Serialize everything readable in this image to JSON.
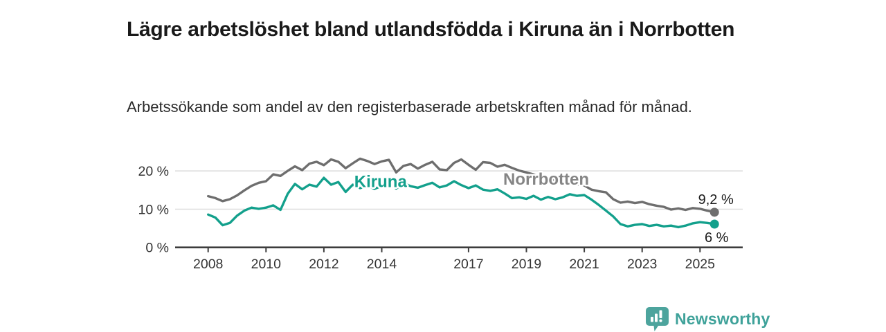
{
  "header": {
    "title": "Lägre arbetslöshet bland utlandsfödda i Kiruna än i Norrbotten",
    "subtitle": "Arbetssökande som andel av den registerbaserade arbetskraften månad för månad."
  },
  "branding": {
    "logo_text": "Newsworthy",
    "logo_icon": "newsworthy-bar-chart-bubble-icon",
    "logo_color": "#4da49d",
    "text_color": "#3fa29a"
  },
  "chart_data": {
    "type": "line",
    "unit": "%",
    "grid": "horizontal",
    "grid_color": "#dcdcdc",
    "axis_color": "#3d3d3d",
    "tick_label_color": "#333333",
    "ylim": [
      0,
      24
    ],
    "xlim": [
      2007.8,
      2026.3
    ],
    "yticks": [
      {
        "value": 0,
        "label": "0 %"
      },
      {
        "value": 10,
        "label": "10 %"
      },
      {
        "value": 20,
        "label": "20 %"
      }
    ],
    "xticks": [
      {
        "value": 2008,
        "label": "2008"
      },
      {
        "value": 2010,
        "label": "2010"
      },
      {
        "value": 2012,
        "label": "2012"
      },
      {
        "value": 2014,
        "label": "2014"
      },
      {
        "value": 2017,
        "label": "2017"
      },
      {
        "value": 2019,
        "label": "2019"
      },
      {
        "value": 2021,
        "label": "2021"
      },
      {
        "value": 2023,
        "label": "2023"
      },
      {
        "value": 2025,
        "label": "2025"
      }
    ],
    "x": [
      2008,
      2008.25,
      2008.5,
      2008.75,
      2009,
      2009.25,
      2009.5,
      2009.75,
      2010,
      2010.25,
      2010.5,
      2010.75,
      2011,
      2011.25,
      2011.5,
      2011.75,
      2012,
      2012.25,
      2012.5,
      2012.75,
      2013,
      2013.25,
      2013.5,
      2013.75,
      2014,
      2014.25,
      2014.5,
      2014.75,
      2015,
      2015.25,
      2015.5,
      2015.75,
      2016,
      2016.25,
      2016.5,
      2016.75,
      2017,
      2017.25,
      2017.5,
      2017.75,
      2018,
      2018.25,
      2018.5,
      2018.75,
      2019,
      2019.25,
      2019.5,
      2019.75,
      2020,
      2020.25,
      2020.5,
      2020.75,
      2021,
      2021.25,
      2021.5,
      2021.75,
      2022,
      2022.25,
      2022.5,
      2022.75,
      2023,
      2023.25,
      2023.5,
      2023.75,
      2024,
      2024.25,
      2024.5,
      2024.75,
      2025,
      2025.25,
      2025.5
    ],
    "series": [
      {
        "name": "Norrbotten",
        "color": "#6e6e6e",
        "label_color": "#858585",
        "end_label": "9,2 %",
        "end_label_offset": {
          "dx": 2,
          "dy": -12
        },
        "label_pos": {
          "x": 2018.2,
          "y": 16.4
        },
        "values": [
          13.4,
          12.9,
          12.1,
          12.6,
          13.6,
          14.9,
          16.1,
          16.9,
          17.3,
          19.1,
          18.7,
          20.0,
          21.2,
          20.2,
          21.9,
          22.4,
          21.5,
          23.0,
          22.4,
          20.7,
          22.0,
          23.2,
          22.6,
          21.8,
          22.5,
          22.9,
          19.6,
          21.3,
          21.8,
          20.6,
          21.6,
          22.4,
          20.4,
          20.2,
          22.1,
          23.0,
          21.6,
          20.3,
          22.3,
          22.1,
          21.1,
          21.6,
          20.8,
          20.1,
          19.6,
          19.1,
          18.4,
          17.9,
          17.6,
          17.1,
          16.9,
          16.5,
          16.2,
          15.1,
          14.7,
          14.4,
          12.6,
          11.7,
          12.0,
          11.6,
          11.9,
          11.3,
          10.9,
          10.6,
          9.9,
          10.2,
          9.8,
          10.3,
          10.1,
          9.6,
          9.2
        ]
      },
      {
        "name": "Kiruna",
        "color": "#13a08c",
        "label_color": "#13a08c",
        "end_label": "6 %",
        "end_label_offset": {
          "dx": 3,
          "dy": 26
        },
        "label_pos": {
          "x": 2013.05,
          "y": 15.8
        },
        "values": [
          8.6,
          7.8,
          5.8,
          6.4,
          8.3,
          9.6,
          10.4,
          10.1,
          10.4,
          11.0,
          9.8,
          14.0,
          16.6,
          15.2,
          16.4,
          15.9,
          18.2,
          16.4,
          17.1,
          14.5,
          16.4,
          15.5,
          16.1,
          15.3,
          16.1,
          16.6,
          15.4,
          16.8,
          16.0,
          15.6,
          16.3,
          16.9,
          15.7,
          16.2,
          17.3,
          16.3,
          15.5,
          16.2,
          15.1,
          14.8,
          15.2,
          14.1,
          12.9,
          13.1,
          12.7,
          13.5,
          12.5,
          13.2,
          12.6,
          13.1,
          13.9,
          13.5,
          13.7,
          12.5,
          11.1,
          9.6,
          8.1,
          6.1,
          5.5,
          5.9,
          6.1,
          5.6,
          5.9,
          5.5,
          5.7,
          5.3,
          5.7,
          6.3,
          6.6,
          6.4,
          6.1
        ]
      }
    ]
  }
}
